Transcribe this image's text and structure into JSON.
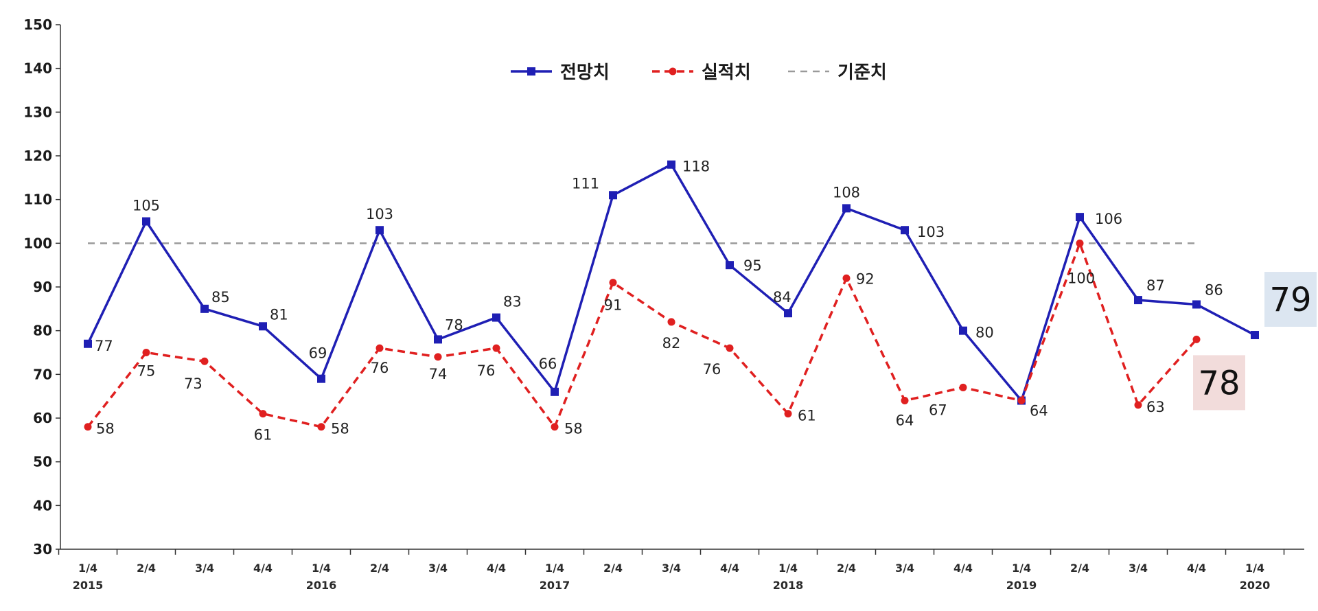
{
  "chart_data": {
    "type": "line",
    "ylim": [
      30,
      150
    ],
    "yticks": [
      30,
      40,
      50,
      60,
      70,
      80,
      90,
      100,
      110,
      120,
      130,
      140,
      150
    ],
    "grid": false,
    "legend_position": "top-center",
    "categories": [
      {
        "quarter": "1/4",
        "year": "2015"
      },
      {
        "quarter": "2/4",
        "year": ""
      },
      {
        "quarter": "3/4",
        "year": ""
      },
      {
        "quarter": "4/4",
        "year": ""
      },
      {
        "quarter": "1/4",
        "year": "2016"
      },
      {
        "quarter": "2/4",
        "year": ""
      },
      {
        "quarter": "3/4",
        "year": ""
      },
      {
        "quarter": "4/4",
        "year": ""
      },
      {
        "quarter": "1/4",
        "year": "2017"
      },
      {
        "quarter": "2/4",
        "year": ""
      },
      {
        "quarter": "3/4",
        "year": ""
      },
      {
        "quarter": "4/4",
        "year": ""
      },
      {
        "quarter": "1/4",
        "year": "2018"
      },
      {
        "quarter": "2/4",
        "year": ""
      },
      {
        "quarter": "3/4",
        "year": ""
      },
      {
        "quarter": "4/4",
        "year": ""
      },
      {
        "quarter": "1/4",
        "year": "2019"
      },
      {
        "quarter": "2/4",
        "year": ""
      },
      {
        "quarter": "3/4",
        "year": ""
      },
      {
        "quarter": "4/4",
        "year": ""
      },
      {
        "quarter": "1/4",
        "year": "2020"
      }
    ],
    "series": [
      {
        "name": "전망치",
        "color": "#1f1fb4",
        "style": "solid",
        "values": [
          77,
          105,
          85,
          81,
          69,
          103,
          78,
          83,
          66,
          111,
          118,
          95,
          84,
          108,
          103,
          80,
          64,
          106,
          87,
          86,
          79
        ],
        "labels": [
          "77",
          "105",
          "85",
          "81",
          "69",
          "103",
          "78",
          "83",
          "66",
          "111",
          "118",
          "95",
          "84",
          "108",
          "103",
          "80",
          "",
          "106",
          "87",
          "86",
          ""
        ]
      },
      {
        "name": "실적치",
        "color": "#e02020",
        "style": "dashed",
        "values": [
          58,
          75,
          73,
          61,
          58,
          76,
          74,
          76,
          58,
          91,
          82,
          76,
          61,
          92,
          64,
          67,
          64,
          100,
          63,
          78,
          null
        ],
        "labels": [
          "58",
          "75",
          "73",
          "61",
          "58",
          "76",
          "74",
          "76",
          "58",
          "91",
          "82",
          "76",
          "61",
          "92",
          "64",
          "67",
          "64",
          "100",
          "63",
          "",
          ""
        ]
      },
      {
        "name": "기준치",
        "color": "#9a9a9a",
        "style": "dashed",
        "values": [
          100,
          100,
          100,
          100,
          100,
          100,
          100,
          100,
          100,
          100,
          100,
          100,
          100,
          100,
          100,
          100,
          100,
          100,
          100,
          100,
          null
        ]
      }
    ],
    "callouts": [
      {
        "text": "79",
        "series": "전망치",
        "index": 20,
        "background": "#dce6f1"
      },
      {
        "text": "78",
        "series": "실적치",
        "index": 19,
        "background": "#f2dcdb"
      }
    ]
  }
}
